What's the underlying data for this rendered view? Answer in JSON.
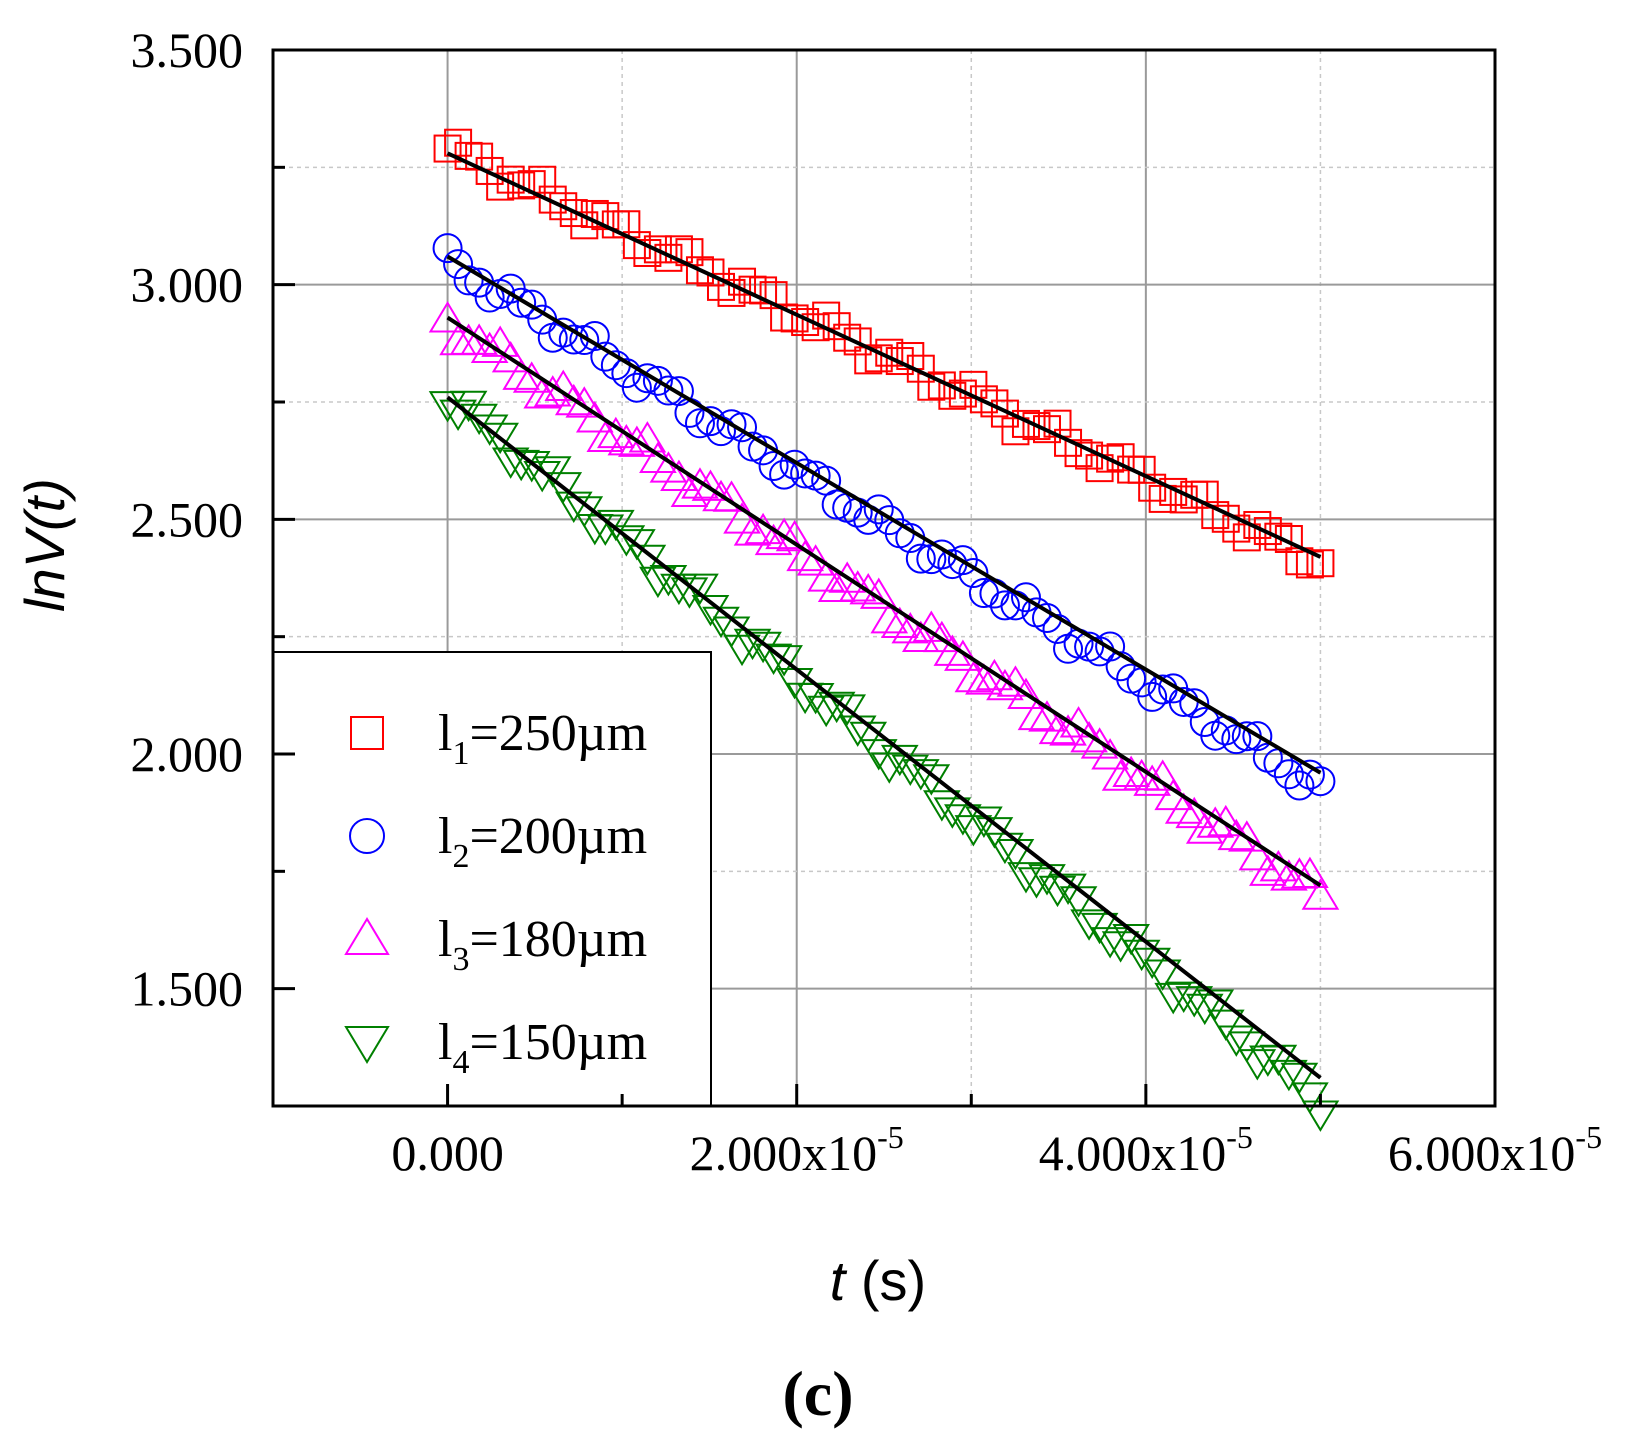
{
  "chart_data": {
    "type": "scatter",
    "panel_label": "(c)",
    "xlabel": {
      "var": "t",
      "unit": " (s)"
    },
    "ylabel": {
      "var": "lnV",
      "arg": "(t)"
    },
    "xlim": [
      -1e-05,
      6e-05
    ],
    "ylim": [
      1.25,
      3.5
    ],
    "x_ticks": [
      {
        "value": 0,
        "mantissa": "0.000",
        "exp": ""
      },
      {
        "value": 2e-05,
        "mantissa": "2.000x10",
        "exp": "-5"
      },
      {
        "value": 4e-05,
        "mantissa": "4.000x10",
        "exp": "-5"
      },
      {
        "value": 6e-05,
        "mantissa": "6.000x10",
        "exp": "-5"
      }
    ],
    "y_ticks": [
      {
        "value": 3.5,
        "label": "3.500"
      },
      {
        "value": 3.0,
        "label": "3.000"
      },
      {
        "value": 2.5,
        "label": "2.500"
      },
      {
        "value": 2.0,
        "label": "2.000"
      },
      {
        "value": 1.5,
        "label": "1.500"
      }
    ],
    "grid": true,
    "legend_position": "bottom-left",
    "x_start": 0,
    "x_end": 5e-05,
    "points_per_series": 84,
    "series": [
      {
        "name": "l1=250µm",
        "legend_main": "l",
        "legend_sub": "1",
        "legend_rest": "=250µm",
        "marker": "square",
        "color": "#ff0000",
        "data_start": 3.29,
        "data_end": 2.41,
        "fit": {
          "x": [
            0,
            5e-05
          ],
          "y": [
            3.28,
            2.42
          ]
        }
      },
      {
        "name": "l2=200µm",
        "legend_main": "l",
        "legend_sub": "2",
        "legend_rest": "=200µm",
        "marker": "circle",
        "color": "#0000ff",
        "data_start": 3.05,
        "data_end": 1.93,
        "fit": {
          "x": [
            0,
            5e-05
          ],
          "y": [
            3.06,
            1.96
          ]
        }
      },
      {
        "name": "l3=180µm",
        "legend_main": "l",
        "legend_sub": "3",
        "legend_rest": "=180µm",
        "marker": "triangle-up",
        "color": "#ff00ff",
        "data_start": 2.92,
        "data_end": 1.7,
        "fit": {
          "x": [
            0,
            5e-05
          ],
          "y": [
            2.93,
            1.72
          ]
        }
      },
      {
        "name": "l4=150µm",
        "legend_main": "l",
        "legend_sub": "4",
        "legend_rest": "=150µm",
        "marker": "triangle-down",
        "color": "#008000",
        "data_start": 2.76,
        "data_end": 1.26,
        "fit": {
          "x": [
            0,
            5e-05
          ],
          "y": [
            2.76,
            1.31
          ]
        }
      }
    ],
    "fit_color": "#000000"
  }
}
